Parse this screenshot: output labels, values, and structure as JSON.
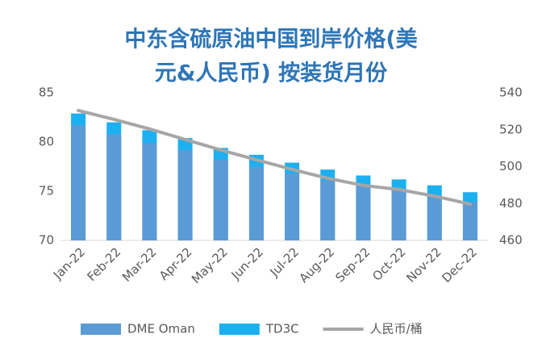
{
  "chart_data": {
    "type": "bar",
    "title": "中东含硫原油中国到岸价格(美元&人民币) 按装货月份",
    "title_lines": [
      "中东含硫原油中国到岸价格(美",
      "元&人民币) 按装货月份"
    ],
    "categories": [
      "Jan-22",
      "Feb-22",
      "Mar-22",
      "Apr-22",
      "May-22",
      "Jun-22",
      "Jul-22",
      "Aug-22",
      "Sep-22",
      "Oct-22",
      "Nov-22",
      "Dec-22"
    ],
    "series": [
      {
        "name": "DME Oman",
        "color": "#5b9bd5",
        "values": [
          81.7,
          80.8,
          79.9,
          79.2,
          78.2,
          77.5,
          76.8,
          76.1,
          75.5,
          75.1,
          74.5,
          73.9
        ]
      },
      {
        "name": "TD3C",
        "color": "#1cb0f0",
        "values": [
          82.9,
          82.0,
          81.2,
          80.4,
          79.4,
          78.7,
          77.9,
          77.2,
          76.6,
          76.2,
          75.6,
          74.9
        ]
      },
      {
        "name": "人民币/桶",
        "color": "#a6a6a6",
        "type": "line",
        "axis": "y2",
        "values": [
          530.4,
          525.6,
          520.4,
          514.7,
          509,
          503.7,
          498.5,
          493.7,
          489.8,
          487.6,
          484,
          479.7
        ]
      }
    ],
    "ylim": [
      70,
      85
    ],
    "yticks": [
      70,
      75,
      80,
      85
    ],
    "y2lim": [
      460,
      540
    ],
    "y2ticks": [
      460,
      480,
      500,
      520,
      540
    ],
    "legend": "bottom"
  }
}
